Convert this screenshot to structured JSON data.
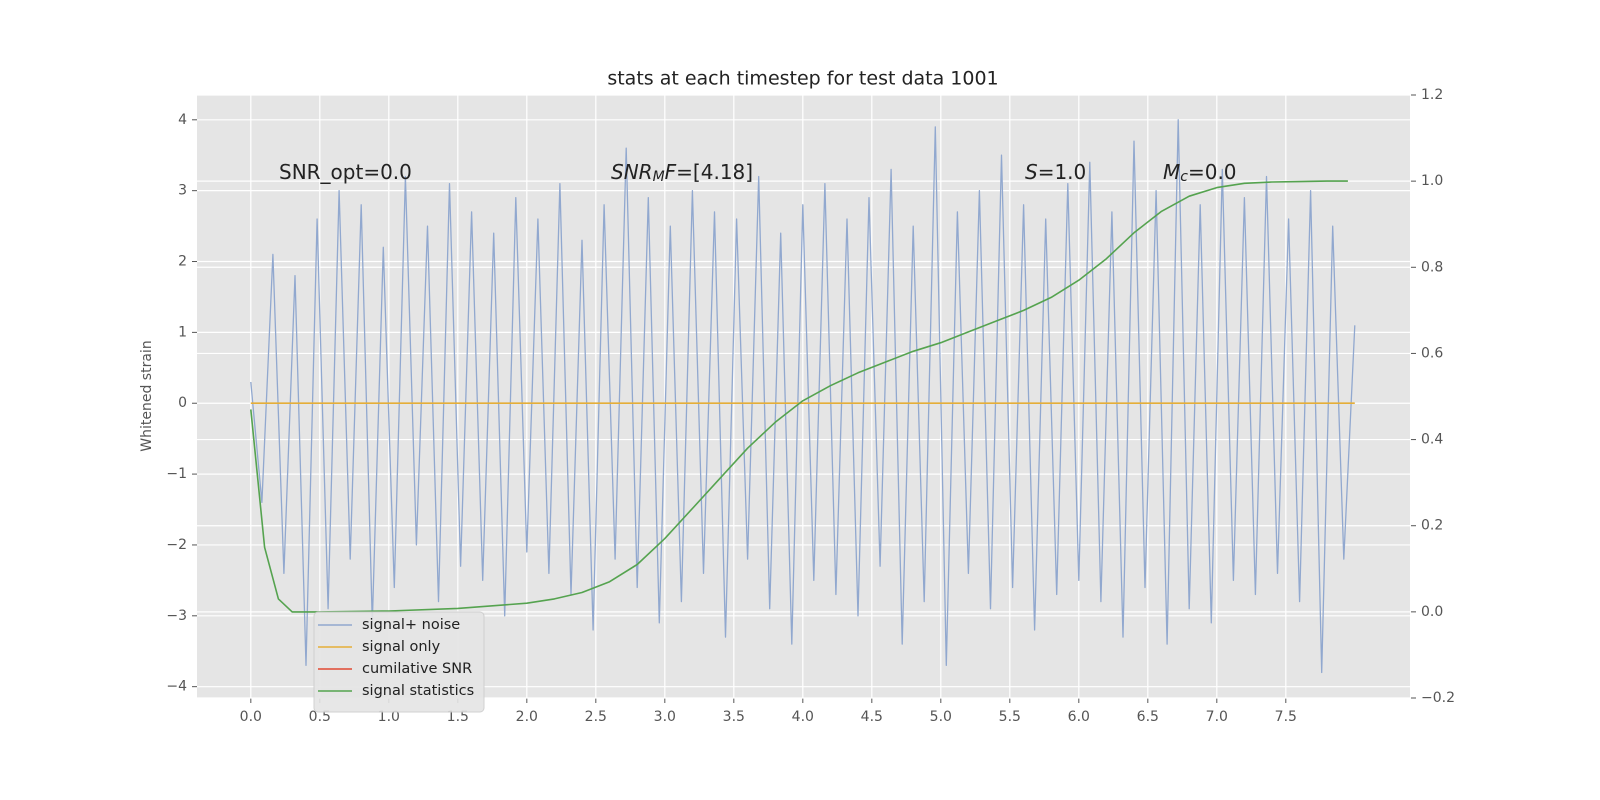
{
  "chart_data": {
    "type": "line",
    "title": "stats at each timestep for test data 1001",
    "ylabel": "Whitened strain",
    "xlim": [
      -0.39,
      8.4
    ],
    "ylim": [
      -4.16,
      4.35
    ],
    "y2lim": [
      -0.2,
      1.2
    ],
    "xticks": [
      {
        "value": 0,
        "label": "0.0"
      },
      {
        "value": 0.5,
        "label": "0.5"
      },
      {
        "value": 1,
        "label": "1.0"
      },
      {
        "value": 1.5,
        "label": "1.5"
      },
      {
        "value": 2,
        "label": "2.0"
      },
      {
        "value": 2.5,
        "label": "2.5"
      },
      {
        "value": 3,
        "label": "3.0"
      },
      {
        "value": 3.5,
        "label": "3.5"
      },
      {
        "value": 4,
        "label": "4.0"
      },
      {
        "value": 4.5,
        "label": "4.5"
      },
      {
        "value": 5,
        "label": "5.0"
      },
      {
        "value": 5.5,
        "label": "5.5"
      },
      {
        "value": 6,
        "label": "6.0"
      },
      {
        "value": 6.5,
        "label": "6.5"
      },
      {
        "value": 7,
        "label": "7.0"
      },
      {
        "value": 7.5,
        "label": "7.5"
      }
    ],
    "yticks": [
      {
        "value": -4,
        "label": "−4"
      },
      {
        "value": -3,
        "label": "−3"
      },
      {
        "value": -2,
        "label": "−2"
      },
      {
        "value": -1,
        "label": "−1"
      },
      0,
      1,
      2,
      3,
      4
    ],
    "y2ticks": [
      {
        "value": -0.2,
        "label": "−0.2"
      },
      {
        "value": 0,
        "label": "0.0"
      },
      {
        "value": 0.2,
        "label": "0.2"
      },
      {
        "value": 0.4,
        "label": "0.4"
      },
      {
        "value": 0.6,
        "label": "0.6"
      },
      {
        "value": 0.8,
        "label": "0.8"
      },
      {
        "value": 1,
        "label": "1.0"
      },
      {
        "value": 1.2,
        "label": "1.2"
      }
    ],
    "grid": true,
    "legend": "lower left",
    "annotations": [
      {
        "parts": [
          {
            "text": "SNR_opt=0.0"
          }
        ]
      },
      {
        "parts": [
          {
            "text": "SNR",
            "style": "italic"
          },
          {
            "text": "M",
            "style": "sub"
          },
          {
            "text": "F",
            "style": "italic"
          },
          {
            "text": "=[4.18]"
          }
        ]
      },
      {
        "parts": [
          {
            "text": "S",
            "style": "italic"
          },
          {
            "text": "=1.0"
          }
        ]
      },
      {
        "parts": [
          {
            "text": "M",
            "style": "italic"
          },
          {
            "text": "c",
            "style": "sub"
          },
          {
            "text": "=0.0"
          }
        ]
      }
    ],
    "series": [
      {
        "name": "signal+ noise",
        "color": "#91a8cf",
        "x": [
          0,
          0.08,
          0.16,
          0.24,
          0.32,
          0.4,
          0.48,
          0.56,
          0.64,
          0.72,
          0.8,
          0.88,
          0.96,
          1.04,
          1.12,
          1.2,
          1.28,
          1.36,
          1.44,
          1.52,
          1.6,
          1.68,
          1.76,
          1.84,
          1.92,
          2.0,
          2.08,
          2.16,
          2.24,
          2.32,
          2.4,
          2.48,
          2.56,
          2.64,
          2.72,
          2.8,
          2.88,
          2.96,
          3.04,
          3.12,
          3.2,
          3.28,
          3.36,
          3.44,
          3.52,
          3.6,
          3.68,
          3.76,
          3.84,
          3.92,
          4.0,
          4.08,
          4.16,
          4.24,
          4.32,
          4.4,
          4.48,
          4.56,
          4.64,
          4.72,
          4.8,
          4.88,
          4.96,
          5.04,
          5.12,
          5.2,
          5.28,
          5.36,
          5.44,
          5.52,
          5.6,
          5.68,
          5.76,
          5.84,
          5.92,
          6.0,
          6.08,
          6.16,
          6.24,
          6.32,
          6.4,
          6.48,
          6.56,
          6.64,
          6.72,
          6.8,
          6.88,
          6.96,
          7.04,
          7.12,
          7.2,
          7.28,
          7.36,
          7.44,
          7.52,
          7.6,
          7.68,
          7.76,
          7.84,
          7.92,
          8.0
        ],
        "values": [
          0.3,
          -1.4,
          2.1,
          -2.4,
          1.8,
          -3.7,
          2.6,
          -2.9,
          3.0,
          -2.2,
          2.8,
          -3.1,
          2.2,
          -2.6,
          3.2,
          -2.0,
          2.5,
          -2.8,
          3.1,
          -2.3,
          2.7,
          -2.5,
          2.4,
          -3.0,
          2.9,
          -2.1,
          2.6,
          -2.4,
          3.1,
          -2.7,
          2.3,
          -3.2,
          2.8,
          -2.2,
          3.6,
          -2.6,
          2.9,
          -3.1,
          2.5,
          -2.8,
          3.0,
          -2.4,
          2.7,
          -3.3,
          2.6,
          -2.2,
          3.2,
          -2.9,
          2.4,
          -3.4,
          2.8,
          -2.5,
          3.1,
          -2.7,
          2.6,
          -3.0,
          2.9,
          -2.3,
          3.3,
          -3.4,
          2.5,
          -2.8,
          3.9,
          -3.7,
          2.7,
          -2.4,
          3.0,
          -2.9,
          3.5,
          -2.6,
          2.8,
          -3.2,
          2.6,
          -2.7,
          3.1,
          -2.5,
          3.4,
          -2.8,
          2.7,
          -3.3,
          3.7,
          -2.6,
          3.0,
          -3.4,
          4.0,
          -2.9,
          2.8,
          -3.1,
          3.3,
          -2.5,
          2.9,
          -2.7,
          3.2,
          -2.4,
          2.6,
          -2.8,
          3.0,
          -3.8,
          2.5,
          -2.2,
          1.1
        ]
      },
      {
        "name": "signal only",
        "color": "#e5ae38",
        "x": [
          0,
          8.0
        ],
        "values": [
          0,
          0
        ]
      },
      {
        "name": "cumilative SNR",
        "color": "#e24a33",
        "x": [
          0,
          8.0
        ],
        "values": [
          null,
          null
        ]
      },
      {
        "name": "signal statistics",
        "color": "#55a34f",
        "axis": "y2",
        "x": [
          0,
          0.1,
          0.2,
          0.3,
          0.5,
          1.0,
          1.5,
          2.0,
          2.2,
          2.4,
          2.6,
          2.8,
          3.0,
          3.2,
          3.4,
          3.6,
          3.8,
          4.0,
          4.2,
          4.4,
          4.6,
          4.8,
          5.0,
          5.2,
          5.4,
          5.6,
          5.8,
          6.0,
          6.2,
          6.4,
          6.6,
          6.8,
          7.0,
          7.2,
          7.4,
          7.6,
          7.8,
          7.95
        ],
        "values": [
          0.47,
          0.15,
          0.03,
          0.0,
          0.0,
          0.002,
          0.008,
          0.02,
          0.03,
          0.045,
          0.07,
          0.11,
          0.17,
          0.24,
          0.31,
          0.38,
          0.44,
          0.49,
          0.525,
          0.555,
          0.58,
          0.605,
          0.625,
          0.65,
          0.675,
          0.7,
          0.73,
          0.77,
          0.82,
          0.88,
          0.93,
          0.965,
          0.985,
          0.995,
          0.998,
          0.999,
          1.0,
          1.0
        ]
      }
    ]
  }
}
